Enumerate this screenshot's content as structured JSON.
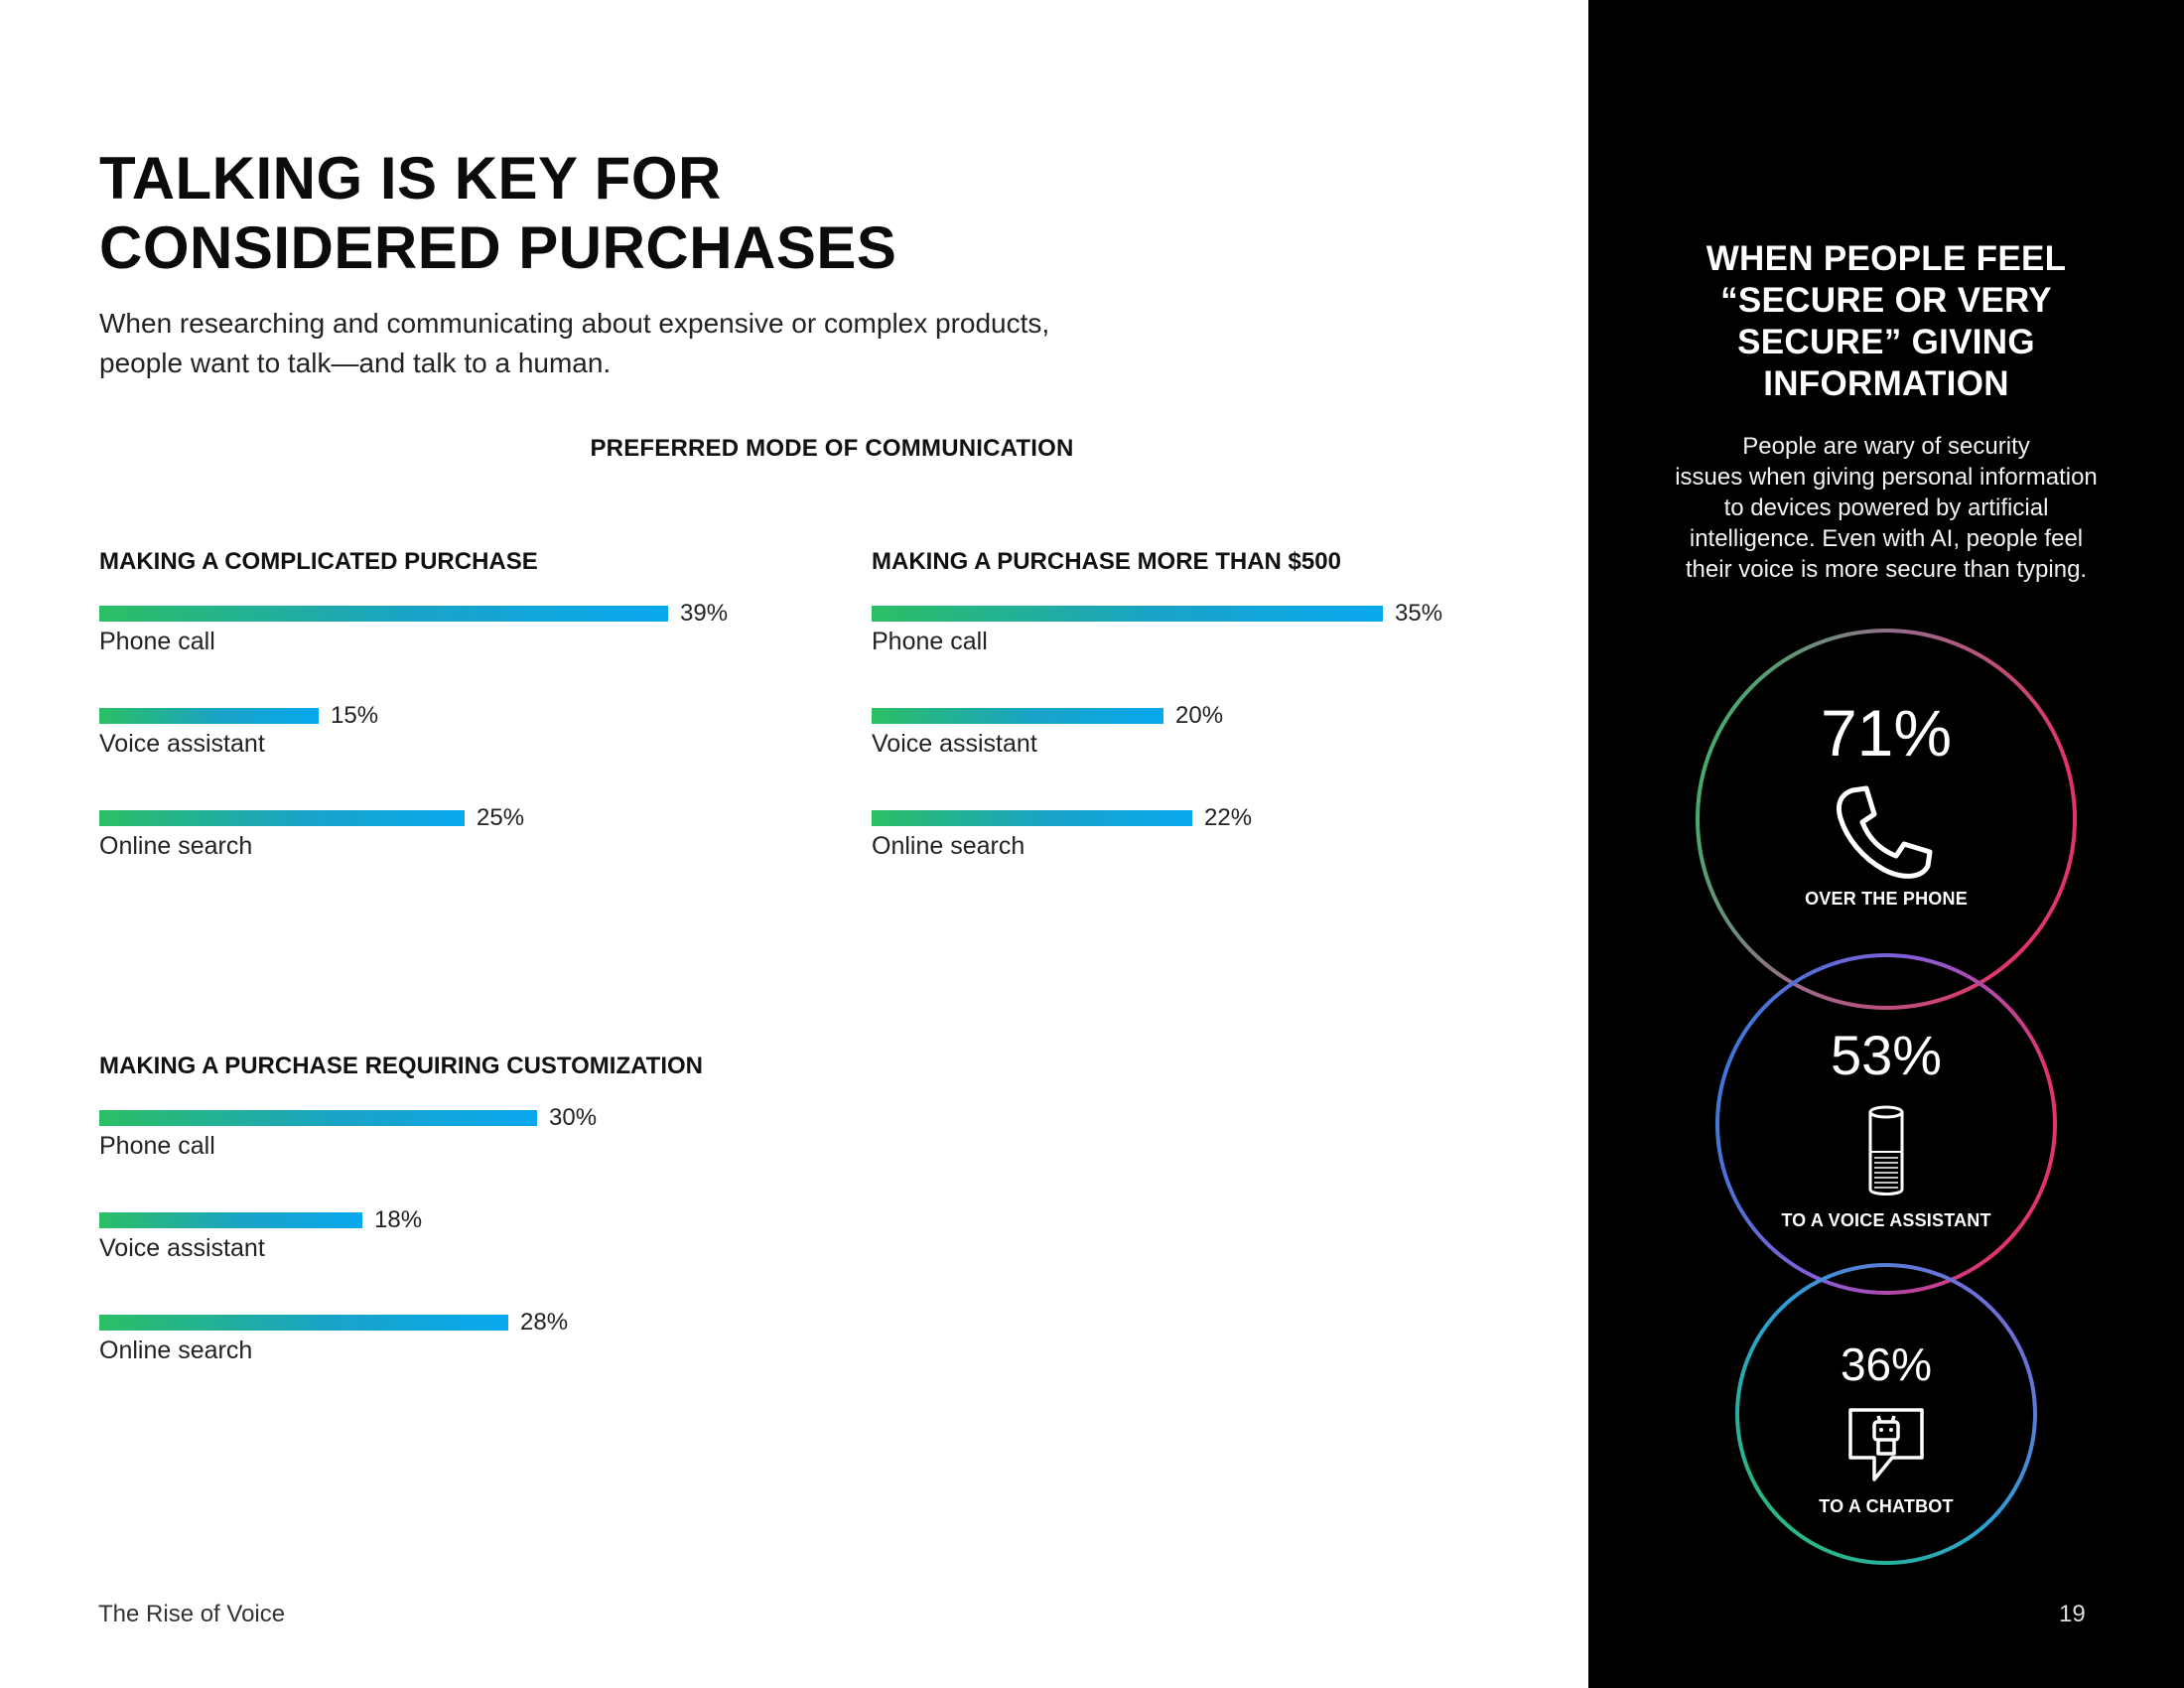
{
  "page": {
    "title_lines": [
      "TALKING IS KEY FOR",
      "CONSIDERED PURCHASES"
    ],
    "subtitle_lines": [
      "When researching and communicating about expensive or complex products,",
      "people want to talk—and talk to a human."
    ],
    "section_heading": "PREFERRED MODE OF COMMUNICATION",
    "footer": "The Rise of Voice",
    "page_number": "19"
  },
  "sidebar": {
    "title_lines": [
      "WHEN PEOPLE FEEL",
      "“SECURE OR VERY",
      "SECURE” GIVING",
      "INFORMATION"
    ],
    "body_lines": [
      "People are wary of security",
      "issues when giving personal information",
      "to devices powered by artificial",
      "intelligence. Even with AI, people feel",
      "their voice is more secure than typing."
    ],
    "stats": [
      {
        "value": "71%",
        "caption": "OVER THE PHONE",
        "icon": "phone-icon"
      },
      {
        "value": "53%",
        "caption": "TO A VOICE ASSISTANT",
        "icon": "smart-speaker-icon"
      },
      {
        "value": "36%",
        "caption": "TO A CHATBOT",
        "icon": "chatbot-icon"
      }
    ],
    "circle_colors": [
      "#2bbf64",
      "#e2336f",
      "#2a7fd8",
      "#8a5bd6"
    ]
  },
  "chart_data": [
    {
      "type": "bar",
      "title": "MAKING A COMPLICATED PURCHASE",
      "categories": [
        "Phone call",
        "Voice assistant",
        "Online search"
      ],
      "values": [
        39,
        15,
        25
      ],
      "value_labels": [
        "39%",
        "15%",
        "25%"
      ],
      "orientation": "horizontal",
      "unit": "%",
      "bar_gradient": [
        "#2bbf64",
        "#08a8ee"
      ]
    },
    {
      "type": "bar",
      "title": "MAKING A PURCHASE MORE THAN $500",
      "categories": [
        "Phone call",
        "Voice assistant",
        "Online search"
      ],
      "values": [
        35,
        20,
        22
      ],
      "value_labels": [
        "35%",
        "20%",
        "22%"
      ],
      "orientation": "horizontal",
      "unit": "%",
      "bar_gradient": [
        "#2bbf64",
        "#08a8ee"
      ]
    },
    {
      "type": "bar",
      "title": "MAKING A PURCHASE REQUIRING CUSTOMIZATION",
      "categories": [
        "Phone call",
        "Voice assistant",
        "Online search"
      ],
      "values": [
        30,
        18,
        28
      ],
      "value_labels": [
        "30%",
        "18%",
        "28%"
      ],
      "orientation": "horizontal",
      "unit": "%",
      "bar_gradient": [
        "#2bbf64",
        "#08a8ee"
      ]
    }
  ]
}
